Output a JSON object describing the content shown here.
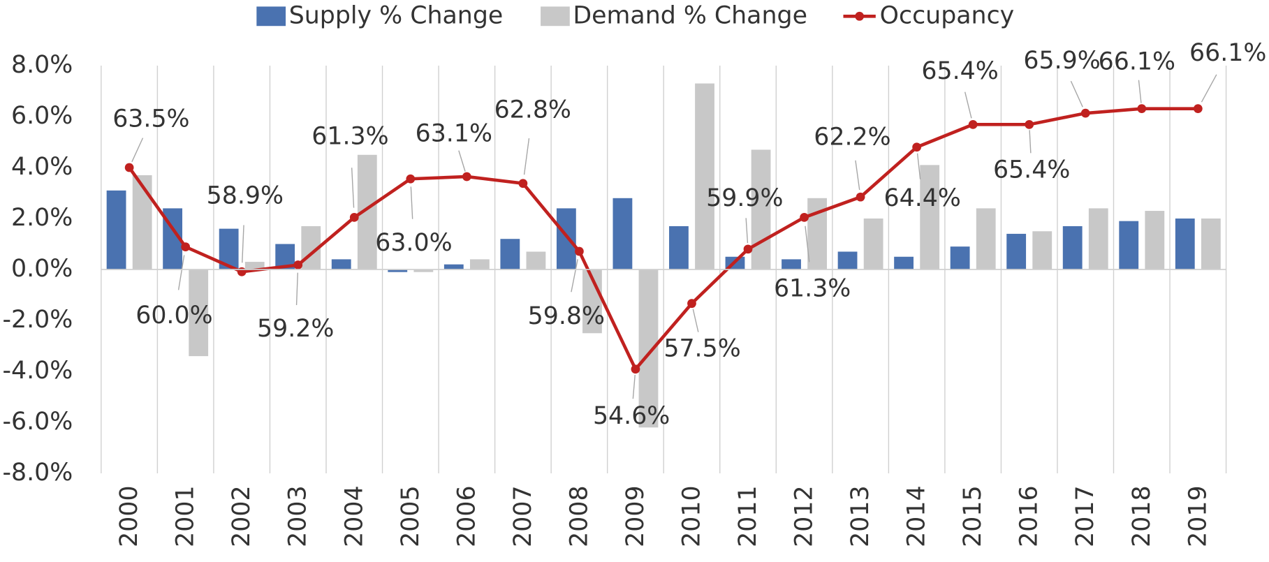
{
  "chart_data": {
    "type": "bar",
    "categories": [
      "2000",
      "2001",
      "2002",
      "2003",
      "2004",
      "2005",
      "2006",
      "2007",
      "2008",
      "2009",
      "2010",
      "2011",
      "2012",
      "2013",
      "2014",
      "2015",
      "2016",
      "2017",
      "2018",
      "2019"
    ],
    "series": [
      {
        "name": "Supply % Change",
        "type": "bar",
        "color": "#4a72b0",
        "values": [
          3.1,
          2.4,
          1.6,
          1.0,
          0.4,
          -0.1,
          0.2,
          1.2,
          2.4,
          2.8,
          1.7,
          0.5,
          0.4,
          0.7,
          0.5,
          0.9,
          1.4,
          1.7,
          1.9,
          2.0
        ]
      },
      {
        "name": "Demand % Change",
        "type": "bar",
        "color": "#c8c8c8",
        "values": [
          3.7,
          -3.4,
          0.3,
          1.7,
          4.5,
          -0.1,
          0.4,
          0.7,
          -2.5,
          -6.2,
          7.3,
          4.7,
          2.8,
          2.0,
          4.1,
          2.4,
          1.5,
          2.4,
          2.3,
          2.0
        ]
      },
      {
        "name": "Occupancy",
        "type": "line",
        "axis": "y2",
        "color": "#c0211f",
        "values": [
          63.5,
          60.0,
          58.9,
          59.2,
          61.3,
          63.0,
          63.1,
          62.8,
          59.8,
          54.6,
          57.5,
          59.9,
          61.3,
          62.2,
          64.4,
          65.4,
          65.4,
          65.9,
          66.1,
          66.1
        ],
        "value_labels": [
          "63.5%",
          "60.0%",
          "58.9%",
          "59.2%",
          "61.3%",
          "63.0%",
          "63.1%",
          "62.8%",
          "59.8%",
          "54.6%",
          "57.5%",
          "59.9%",
          "61.3%",
          "62.2%",
          "64.4%",
          "65.4%",
          "65.4%",
          "65.9%",
          "66.1%",
          "66.1%"
        ]
      }
    ],
    "ylim": [
      -8,
      8
    ],
    "yticks": [
      {
        "value": -8,
        "label": "-8.0%"
      },
      {
        "value": -6,
        "label": "-6.0%"
      },
      {
        "value": -4,
        "label": "-4.0%"
      },
      {
        "value": -2,
        "label": "-2.0%"
      },
      {
        "value": 0,
        "label": "0.0%"
      },
      {
        "value": 2,
        "label": "2.0%"
      },
      {
        "value": 4,
        "label": "4.0%"
      },
      {
        "value": 6,
        "label": "6.0%"
      },
      {
        "value": 8,
        "label": "8.0%"
      }
    ],
    "y2lim": [
      50,
      68
    ],
    "legend": "top"
  }
}
